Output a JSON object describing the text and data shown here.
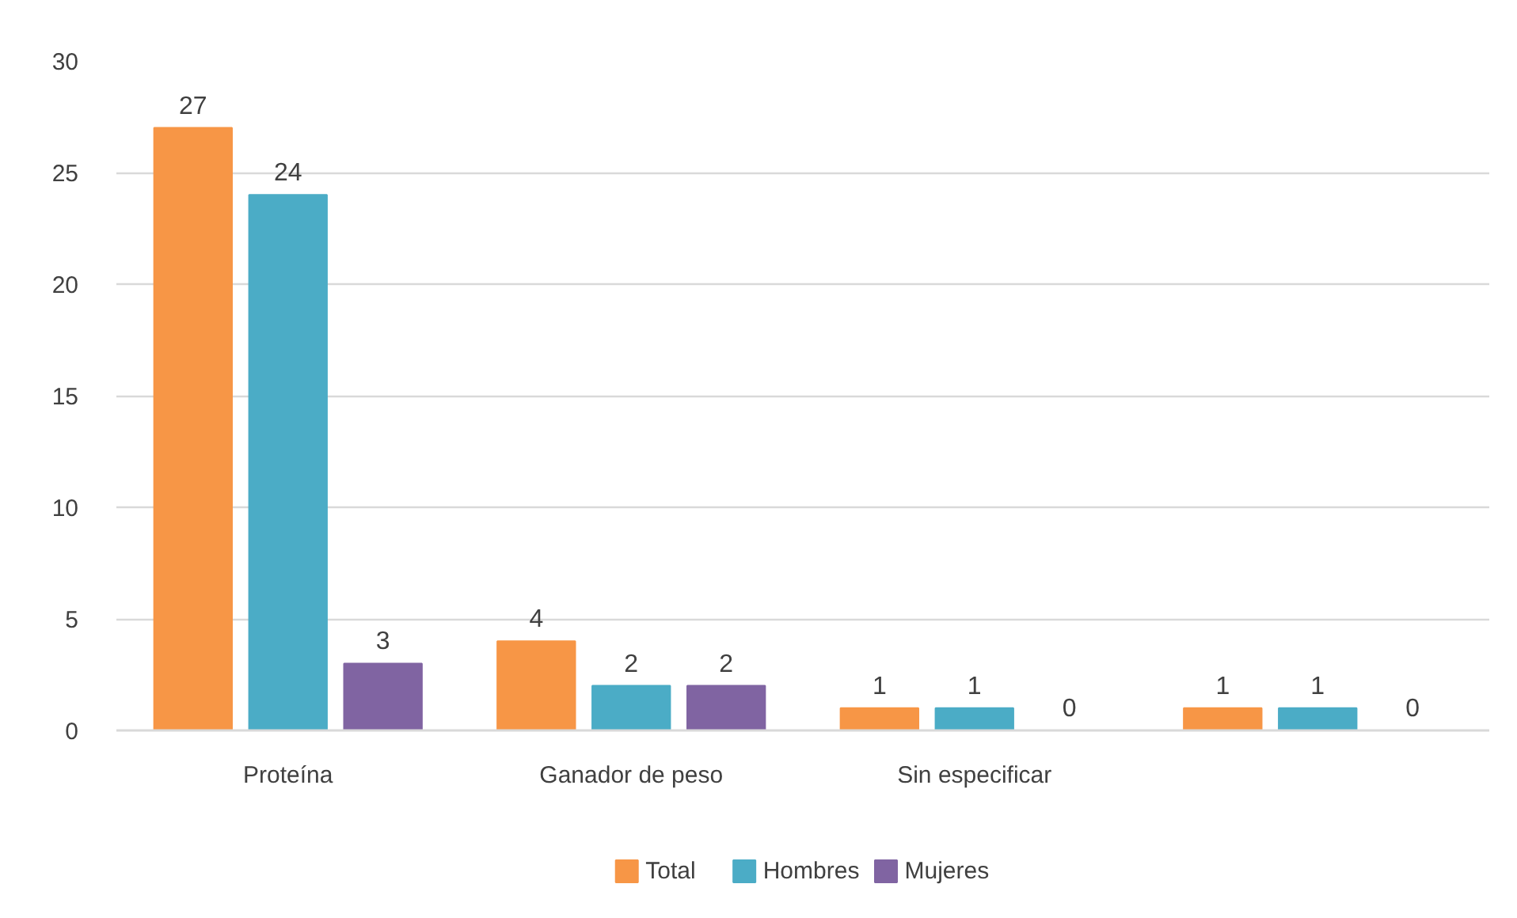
{
  "chart_data": {
    "type": "bar",
    "categories": [
      "Proteína",
      "Ganador de peso",
      "Sin especificar",
      null
    ],
    "series": [
      {
        "name": "Total",
        "color": "#f79646",
        "values": [
          27,
          4,
          1,
          1
        ]
      },
      {
        "name": "Hombres",
        "color": "#4bacc6",
        "values": [
          24,
          2,
          1,
          1
        ]
      },
      {
        "name": "Mujeres",
        "color": "#8064a2",
        "values": [
          3,
          2,
          0,
          0
        ]
      }
    ],
    "ylim": [
      0,
      30
    ],
    "yticks": [
      0,
      5,
      10,
      15,
      20,
      25,
      30
    ],
    "grid": "y",
    "legend": "bottom",
    "data_labels": true
  }
}
